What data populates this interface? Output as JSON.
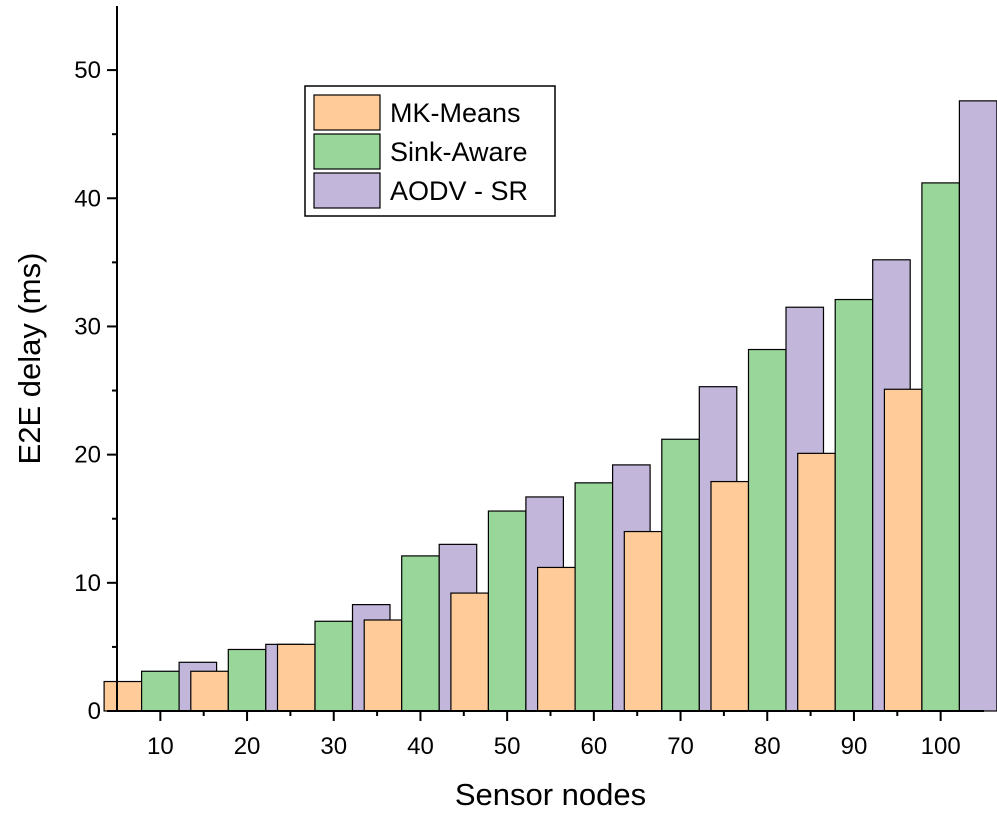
{
  "chart_data": {
    "type": "bar",
    "title": "",
    "xlabel": "Sensor nodes",
    "ylabel": "E2E delay (ms)",
    "categories": [
      "10",
      "20",
      "30",
      "40",
      "50",
      "60",
      "70",
      "80",
      "90",
      "100"
    ],
    "ylim": [
      0,
      55
    ],
    "yticks": [
      0,
      10,
      20,
      30,
      40,
      50
    ],
    "grid": false,
    "legend_position": "top-left",
    "series": [
      {
        "name": "MK-Means",
        "color": "#FFCC99",
        "values": [
          2.3,
          3.1,
          5.2,
          7.1,
          9.2,
          11.2,
          14.0,
          17.9,
          20.1,
          25.1
        ]
      },
      {
        "name": "Sink-Aware",
        "color": "#99D699",
        "values": [
          3.1,
          4.8,
          7.0,
          12.1,
          15.6,
          17.8,
          21.2,
          28.2,
          32.1,
          41.2
        ]
      },
      {
        "name": "AODV - SR",
        "color": "#C3B6DB",
        "values": [
          3.8,
          5.2,
          8.3,
          13.0,
          16.7,
          19.2,
          25.3,
          31.5,
          35.2,
          47.6
        ]
      }
    ]
  }
}
